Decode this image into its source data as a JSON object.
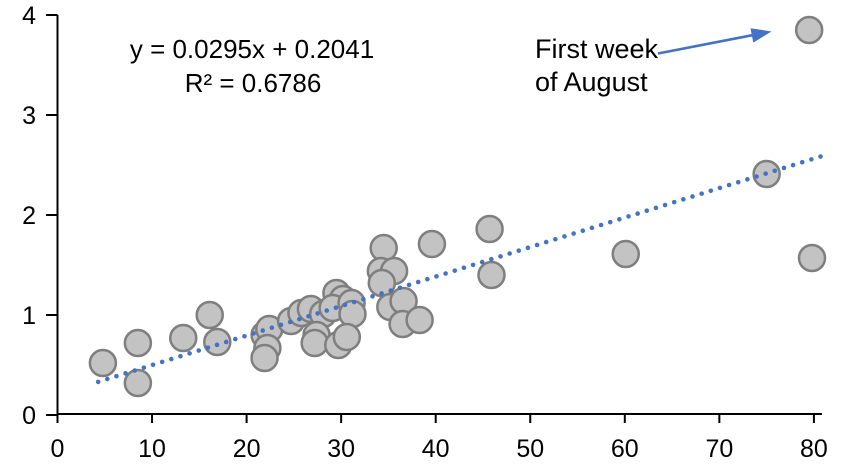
{
  "chart_data": {
    "type": "scatter",
    "title": "",
    "xlabel": "",
    "ylabel": "",
    "grid": false,
    "legend": false,
    "x_axis": {
      "min": 0,
      "max": 80,
      "ticks": [
        0,
        10,
        20,
        30,
        40,
        50,
        60,
        70,
        80
      ]
    },
    "y_axis": {
      "min": 0,
      "max": 4,
      "ticks": [
        0,
        1,
        2,
        3,
        4
      ]
    },
    "points": [
      {
        "x": 4.8,
        "y": 0.52
      },
      {
        "x": 8.5,
        "y": 0.72
      },
      {
        "x": 8.5,
        "y": 0.32
      },
      {
        "x": 13.3,
        "y": 0.77
      },
      {
        "x": 16.1,
        "y": 1.0
      },
      {
        "x": 16.9,
        "y": 0.73
      },
      {
        "x": 21.9,
        "y": 0.8
      },
      {
        "x": 22.4,
        "y": 0.86
      },
      {
        "x": 22.2,
        "y": 0.67
      },
      {
        "x": 21.9,
        "y": 0.57
      },
      {
        "x": 24.7,
        "y": 0.94
      },
      {
        "x": 25.8,
        "y": 1.02
      },
      {
        "x": 26.8,
        "y": 1.06
      },
      {
        "x": 28.1,
        "y": 1.01
      },
      {
        "x": 27.4,
        "y": 0.8
      },
      {
        "x": 27.2,
        "y": 0.72
      },
      {
        "x": 29.5,
        "y": 1.22
      },
      {
        "x": 30.2,
        "y": 1.16
      },
      {
        "x": 29.1,
        "y": 1.07
      },
      {
        "x": 31.1,
        "y": 1.12
      },
      {
        "x": 31.2,
        "y": 1.01
      },
      {
        "x": 29.7,
        "y": 0.7
      },
      {
        "x": 30.6,
        "y": 0.78
      },
      {
        "x": 34.5,
        "y": 1.67
      },
      {
        "x": 34.2,
        "y": 1.44
      },
      {
        "x": 35.6,
        "y": 1.44
      },
      {
        "x": 34.3,
        "y": 1.32
      },
      {
        "x": 35.2,
        "y": 1.08
      },
      {
        "x": 36.6,
        "y": 1.14
      },
      {
        "x": 36.5,
        "y": 0.91
      },
      {
        "x": 38.3,
        "y": 0.95
      },
      {
        "x": 39.6,
        "y": 1.71
      },
      {
        "x": 45.7,
        "y": 1.86
      },
      {
        "x": 45.9,
        "y": 1.4
      },
      {
        "x": 60.1,
        "y": 1.61
      },
      {
        "x": 75.0,
        "y": 2.41
      },
      {
        "x": 79.5,
        "y": 3.85
      },
      {
        "x": 79.8,
        "y": 1.57
      }
    ],
    "trendline": {
      "type": "linear-dotted",
      "slope": 0.0295,
      "intercept": 0.2041,
      "x_start": 4.3,
      "x_end": 80.7,
      "equation_label": "y = 0.0295x + 0.2041",
      "r_squared_label": "R² = 0.6786"
    },
    "annotation": {
      "line1": "First week",
      "line2": "of August",
      "target": {
        "x": 79.5,
        "y": 3.85
      }
    },
    "colors": {
      "marker_fill": "#c3c3c3",
      "marker_stroke": "#7f7f7f",
      "trendline": "#4472c4",
      "arrow": "#4472c4",
      "axis": "#000000",
      "text": "#000000"
    }
  }
}
